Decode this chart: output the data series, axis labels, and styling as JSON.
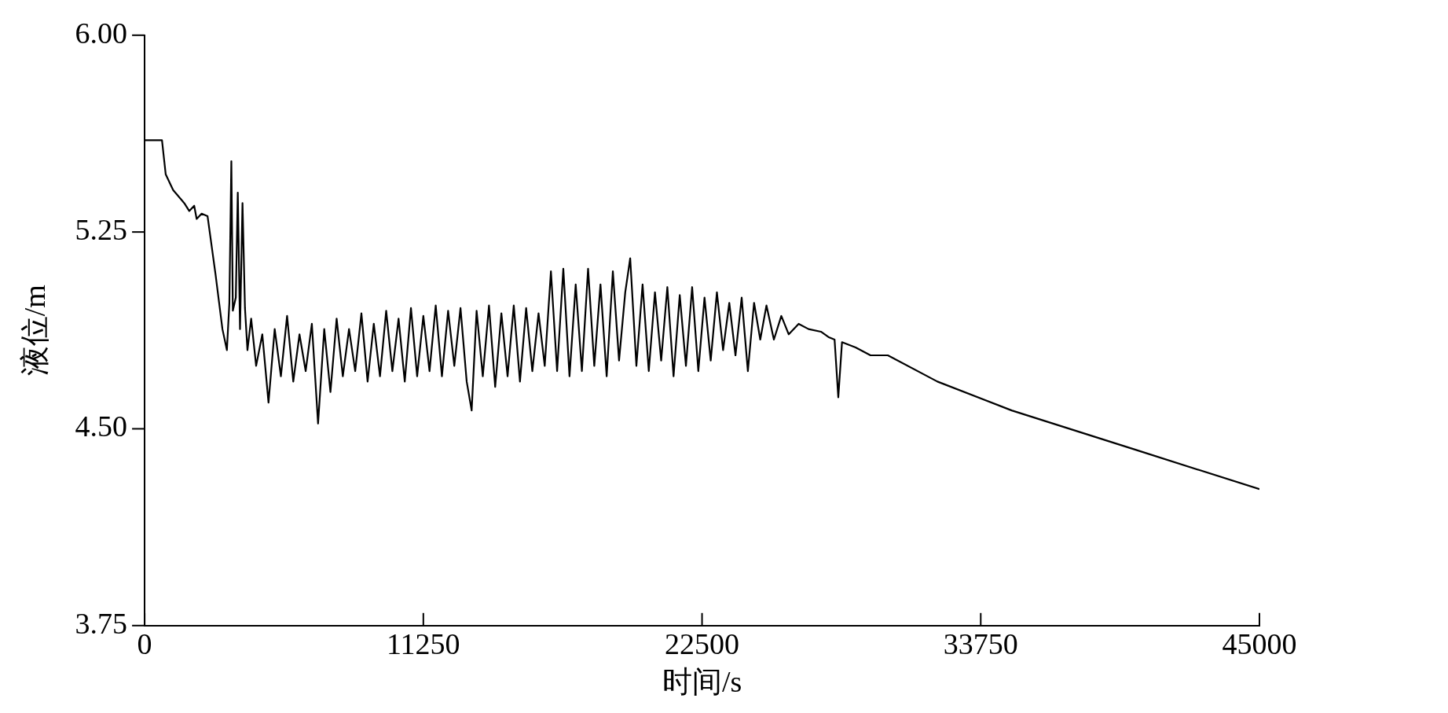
{
  "chart_data": {
    "type": "line",
    "xlabel": "时间/s",
    "ylabel": "液位/m",
    "xlim": [
      0,
      45000
    ],
    "xticks": [
      0,
      11250,
      22500,
      33750,
      45000
    ],
    "ylim": [
      3.75,
      6
    ],
    "yticks": [
      {
        "value": 3.75,
        "label": "3.75"
      },
      {
        "value": 4.5,
        "label": "4.50"
      },
      {
        "value": 5.25,
        "label": "5.25"
      },
      {
        "value": 6,
        "label": "6.00"
      }
    ],
    "grid": false,
    "legend": false,
    "marker": "none",
    "line_style": "solid",
    "series": [
      {
        "color": "#000000",
        "x": [
          0,
          700,
          850,
          1150,
          1600,
          1800,
          2000,
          2100,
          2300,
          2540,
          2860,
          3140,
          3320,
          3420,
          3500,
          3560,
          3680,
          3760,
          3850,
          3950,
          4050,
          4150,
          4300,
          4500,
          4750,
          5000,
          5250,
          5500,
          5750,
          6000,
          6250,
          6500,
          6750,
          7000,
          7250,
          7500,
          7750,
          8000,
          8250,
          8500,
          8750,
          9000,
          9250,
          9500,
          9750,
          10000,
          10250,
          10500,
          10750,
          11000,
          11250,
          11500,
          11750,
          12000,
          12250,
          12500,
          12750,
          13000,
          13200,
          13400,
          13650,
          13900,
          14150,
          14400,
          14650,
          14900,
          15150,
          15400,
          15650,
          15900,
          16150,
          16400,
          16650,
          16900,
          17150,
          17400,
          17650,
          17900,
          18150,
          18400,
          18650,
          18900,
          19150,
          19400,
          19600,
          19850,
          20100,
          20350,
          20600,
          20850,
          21100,
          21350,
          21600,
          21850,
          22100,
          22350,
          22600,
          22850,
          23100,
          23350,
          23600,
          23850,
          24100,
          24350,
          24600,
          24850,
          25100,
          25400,
          25700,
          26000,
          26400,
          26800,
          27300,
          27600,
          27850,
          28000,
          28150,
          28700,
          29300,
          30000,
          32000,
          35000,
          40000,
          45000
        ],
        "values": [
          5.6,
          5.6,
          5.47,
          5.41,
          5.36,
          5.33,
          5.35,
          5.3,
          5.32,
          5.31,
          5.09,
          4.88,
          4.8,
          4.98,
          5.52,
          4.95,
          5.0,
          5.4,
          4.88,
          5.36,
          4.96,
          4.8,
          4.92,
          4.74,
          4.86,
          4.6,
          4.88,
          4.7,
          4.93,
          4.68,
          4.86,
          4.72,
          4.9,
          4.52,
          4.88,
          4.64,
          4.92,
          4.7,
          4.88,
          4.72,
          4.94,
          4.68,
          4.9,
          4.7,
          4.95,
          4.72,
          4.92,
          4.68,
          4.96,
          4.7,
          4.93,
          4.72,
          4.97,
          4.7,
          4.95,
          4.74,
          4.96,
          4.68,
          4.57,
          4.95,
          4.7,
          4.97,
          4.66,
          4.94,
          4.7,
          4.97,
          4.68,
          4.96,
          4.72,
          4.94,
          4.74,
          5.1,
          4.72,
          5.11,
          4.7,
          5.05,
          4.72,
          5.11,
          4.74,
          5.05,
          4.7,
          5.1,
          4.76,
          5.02,
          5.15,
          4.74,
          5.05,
          4.72,
          5.02,
          4.76,
          5.04,
          4.7,
          5.01,
          4.74,
          5.04,
          4.72,
          5.0,
          4.76,
          5.02,
          4.8,
          4.98,
          4.78,
          5.0,
          4.72,
          4.98,
          4.84,
          4.97,
          4.84,
          4.93,
          4.86,
          4.9,
          4.88,
          4.87,
          4.85,
          4.84,
          4.62,
          4.83,
          4.81,
          4.78,
          4.78,
          4.68,
          4.57,
          4.42,
          4.27
        ]
      }
    ]
  }
}
